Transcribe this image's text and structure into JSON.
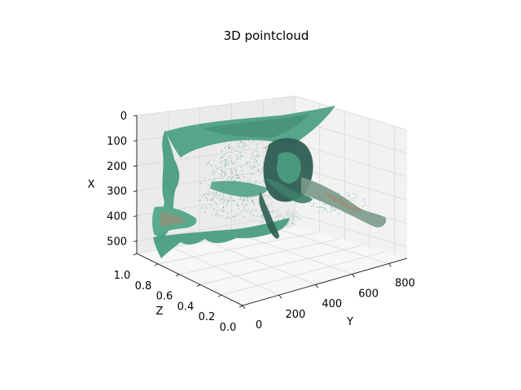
{
  "chart_data": {
    "type": "scatter",
    "projection": "3d",
    "title": "3D pointcloud",
    "xlabel": "Y",
    "ylabel": "Z",
    "zlabel": "X",
    "x_ticks": [
      "0",
      "200",
      "400",
      "600",
      "800"
    ],
    "y_ticks": [
      "0.0",
      "0.2",
      "0.4",
      "0.6",
      "0.8",
      "1.0"
    ],
    "z_ticks": [
      "0",
      "100",
      "200",
      "300",
      "400",
      "500"
    ],
    "xlim": [
      0,
      900
    ],
    "ylim": [
      0,
      1.0
    ],
    "zlim": [
      0,
      550
    ],
    "z_inverted": true,
    "grid": true,
    "colors": {
      "main": "#4a9e82",
      "dark": "#2e5e52",
      "light": "#8fbfae",
      "tan": "#9a8f78",
      "pane_back": "#f2f2f2",
      "pane_side": "#ebebeb",
      "pane_floor": "#f7f7f7",
      "grid": "#d9d9d9"
    }
  }
}
